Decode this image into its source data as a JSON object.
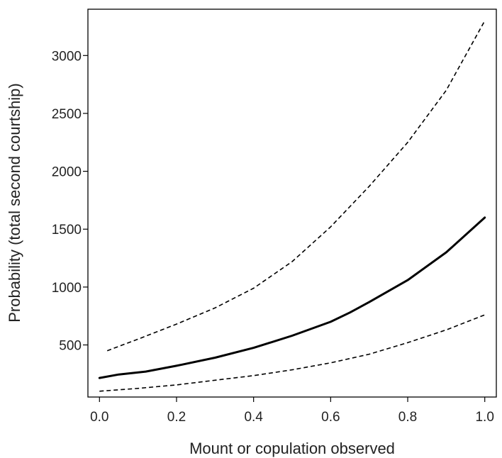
{
  "chart_data": {
    "type": "line",
    "title": "",
    "xlabel": "Mount or copulation observed",
    "ylabel": "Probability (total second courtship)",
    "xlim": [
      -0.03,
      1.03
    ],
    "ylim": [
      50,
      3400
    ],
    "x_ticks": [
      0.0,
      0.2,
      0.4,
      0.6,
      0.8,
      1.0
    ],
    "x_tick_labels": [
      "0.0",
      "0.2",
      "0.4",
      "0.6",
      "0.8",
      "1.0"
    ],
    "y_ticks": [
      500,
      1000,
      1500,
      2000,
      2500,
      3000
    ],
    "y_tick_labels": [
      "500",
      "1000",
      "1500",
      "2000",
      "2500",
      "3000"
    ],
    "grid": false,
    "legend": "none",
    "series": [
      {
        "style": "dashed",
        "role": "upper",
        "x": [
          0.02,
          0.1,
          0.2,
          0.3,
          0.4,
          0.5,
          0.6,
          0.7,
          0.8,
          0.9,
          1.0
        ],
        "y": [
          450,
          550,
          680,
          820,
          990,
          1220,
          1520,
          1870,
          2250,
          2700,
          3300
        ]
      },
      {
        "style": "solid",
        "role": "fit",
        "x": [
          0.0,
          0.05,
          0.12,
          0.2,
          0.3,
          0.4,
          0.5,
          0.6,
          0.65,
          0.7,
          0.8,
          0.9,
          1.0
        ],
        "y": [
          215,
          245,
          270,
          320,
          390,
          475,
          580,
          700,
          780,
          870,
          1060,
          1300,
          1600
        ]
      },
      {
        "style": "dashed",
        "role": "lower",
        "x": [
          0.0,
          0.1,
          0.2,
          0.3,
          0.4,
          0.5,
          0.6,
          0.7,
          0.8,
          0.9,
          1.0
        ],
        "y": [
          100,
          125,
          155,
          195,
          235,
          285,
          345,
          420,
          520,
          630,
          760
        ]
      }
    ]
  }
}
